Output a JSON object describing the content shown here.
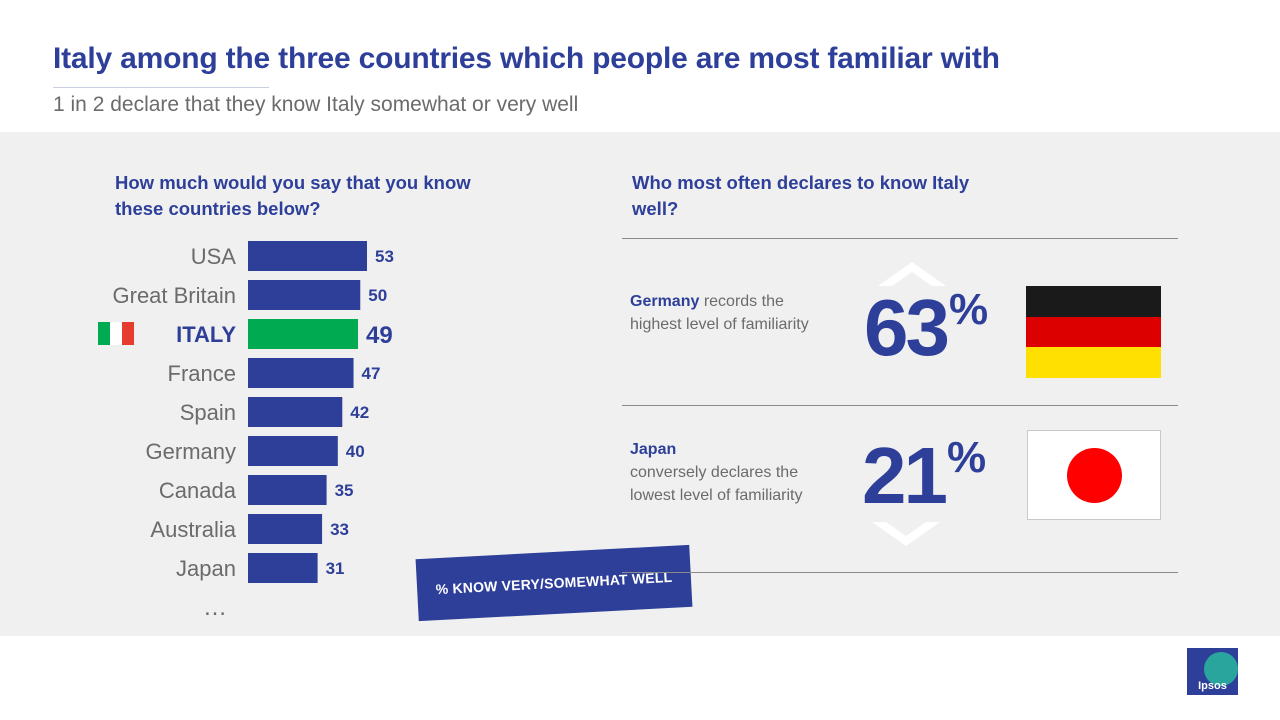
{
  "header": {
    "title": "Italy among the three countries which people are most familiar with",
    "subtitle": "1 in 2 declare that they know Italy somewhat or very well"
  },
  "left": {
    "question": "How much would you say that you know these countries below?",
    "ellipsis": "…",
    "badge": "% KNOW VERY/SOMEWHAT WELL"
  },
  "chart_data": {
    "type": "bar",
    "orientation": "horizontal",
    "categories": [
      "USA",
      "Great Britain",
      "ITALY",
      "France",
      "Spain",
      "Germany",
      "Canada",
      "Australia",
      "Japan"
    ],
    "values": [
      53,
      50,
      49,
      47,
      42,
      40,
      35,
      33,
      31
    ],
    "highlight": "ITALY",
    "colors": {
      "bar": "#2E3F9A",
      "highlight": "#00AA50"
    }
  },
  "right": {
    "question": "Who most often declares to know Italy well?",
    "rows": [
      {
        "country": "Germany",
        "text": "records the highest level of familiarity",
        "value": "63",
        "sign": "%",
        "direction": "up"
      },
      {
        "country": "Japan",
        "text": "conversely declares the lowest level of familiarity",
        "value": "21",
        "sign": "%",
        "direction": "down"
      }
    ]
  },
  "flags": {
    "italy": [
      "#00AA50",
      "#ffffff",
      "#E63B2E"
    ],
    "germany": [
      "#1a1a1a",
      "#DD0000",
      "#FFE000"
    ],
    "japan_dot": "#FF0000"
  },
  "logo": {
    "text": "Ipsos"
  }
}
